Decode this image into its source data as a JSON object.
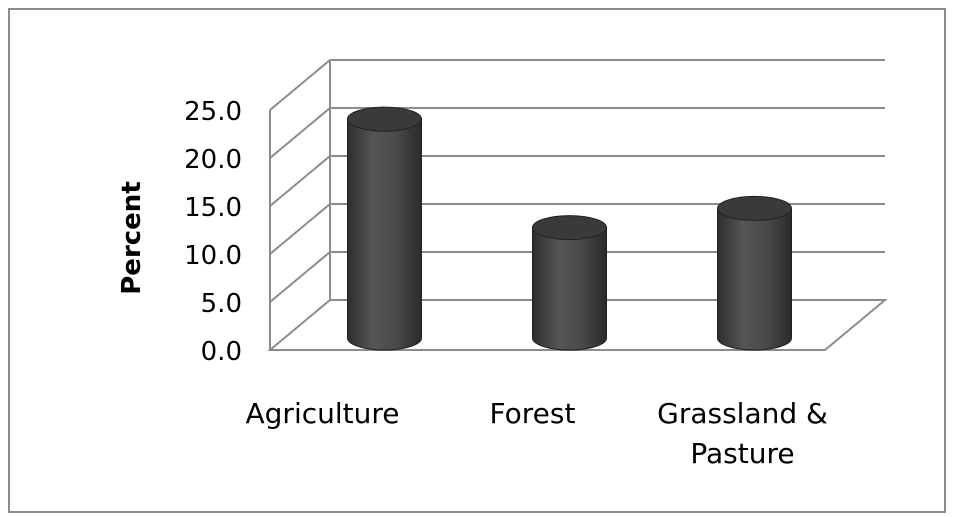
{
  "chart_data": {
    "type": "bar",
    "style": "3d-cylinder",
    "categories": [
      "Agriculture",
      "Forest",
      "Grassland & Pasture"
    ],
    "category_label_lines": [
      [
        "Agriculture"
      ],
      [
        "Forest"
      ],
      [
        "Grassland &",
        "Pasture"
      ]
    ],
    "values": [
      22.8,
      11.5,
      13.5
    ],
    "ylabel": "Percent",
    "xlabel": "",
    "title": "",
    "ylim": [
      0,
      25
    ],
    "yticks": [
      "0.0",
      "5.0",
      "10.0",
      "15.0",
      "20.0",
      "25.0"
    ],
    "grid": true,
    "legend": "none",
    "colors": {
      "bar_side": "#4a4a4a",
      "bar_side_dark": "#2e2e2e",
      "bar_top": "#3a3a3a",
      "grid": "#8c8c8c",
      "frame": "#8c8c8c"
    }
  }
}
